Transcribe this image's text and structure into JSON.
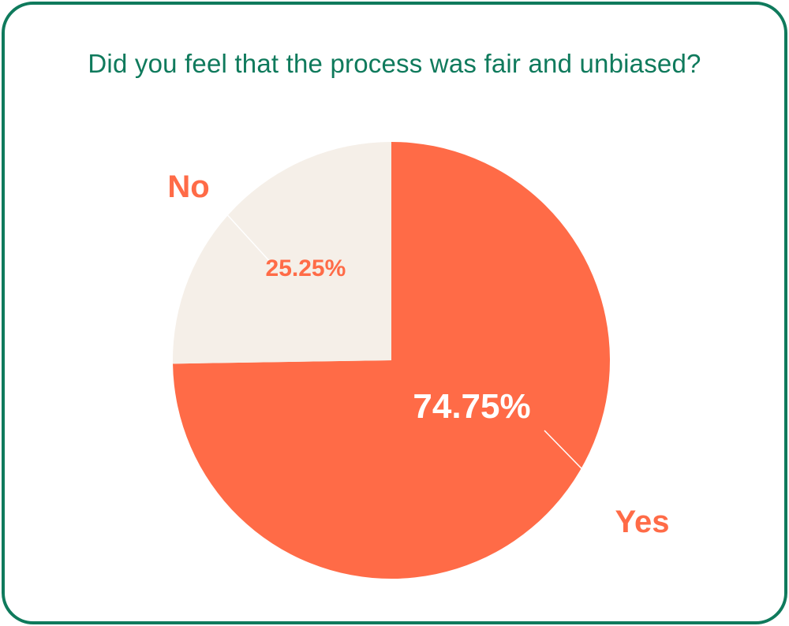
{
  "chart_data": {
    "type": "pie",
    "title": "Did you feel that the process was fair and unbiased?",
    "slices": [
      {
        "label": "Yes",
        "value": 74.75,
        "percent_label": "74.75%",
        "color": "#ff6b47"
      },
      {
        "label": "No",
        "value": 25.25,
        "percent_label": "25.25%",
        "color": "#f5efe8"
      }
    ],
    "label_color": "#ff6b47",
    "inner_label_color_on_accent": "#ffffff",
    "title_color": "#0f7a5c",
    "border_color": "#0f7a5c"
  }
}
